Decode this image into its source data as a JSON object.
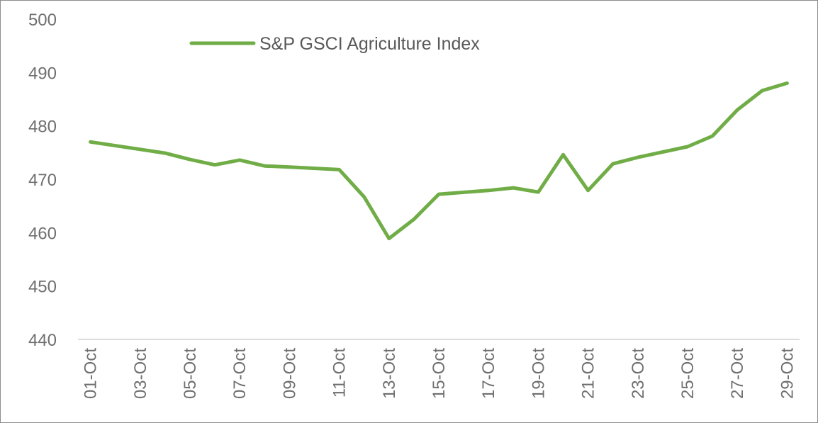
{
  "chart_data": {
    "type": "line",
    "title": "",
    "xlabel": "",
    "ylabel": "",
    "ylim": [
      440,
      500
    ],
    "yticks": [
      440,
      450,
      460,
      470,
      480,
      490,
      500
    ],
    "legend_position": "top-left",
    "grid": false,
    "x_tick_labels": [
      "01-Oct",
      "03-Oct",
      "05-Oct",
      "07-Oct",
      "09-Oct",
      "11-Oct",
      "13-Oct",
      "15-Oct",
      "17-Oct",
      "19-Oct",
      "21-Oct",
      "23-Oct",
      "25-Oct",
      "27-Oct",
      "29-Oct"
    ],
    "x": [
      "01-Oct",
      "02-Oct",
      "03-Oct",
      "04-Oct",
      "05-Oct",
      "06-Oct",
      "07-Oct",
      "08-Oct",
      "09-Oct",
      "10-Oct",
      "11-Oct",
      "12-Oct",
      "13-Oct",
      "14-Oct",
      "15-Oct",
      "16-Oct",
      "17-Oct",
      "18-Oct",
      "19-Oct",
      "20-Oct",
      "21-Oct",
      "22-Oct",
      "23-Oct",
      "24-Oct",
      "25-Oct",
      "26-Oct",
      "27-Oct",
      "28-Oct",
      "29-Oct"
    ],
    "series": [
      {
        "name": "S&P GSCI Agriculture Index",
        "color": "#70ad47",
        "values": [
          477.0,
          null,
          475.6,
          474.9,
          473.7,
          472.7,
          473.6,
          472.5,
          472.3,
          null,
          471.8,
          466.7,
          458.9,
          462.5,
          467.2,
          null,
          467.9,
          468.4,
          467.6,
          474.6,
          467.9,
          472.9,
          474.1,
          null,
          476.1,
          478.1,
          483.0,
          486.6,
          488.0
        ]
      }
    ]
  }
}
